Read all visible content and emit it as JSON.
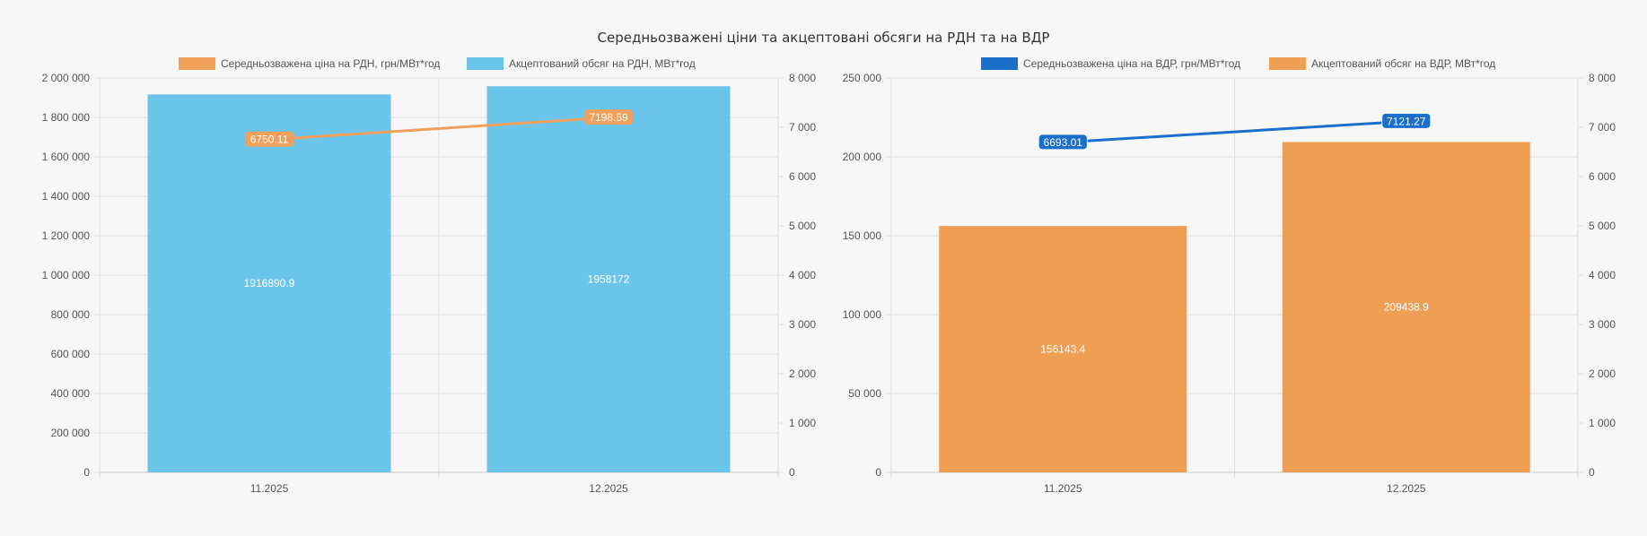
{
  "page": {
    "title": "Середньозважені ціни та акцептовані обсяги на РДН та на ВДР"
  },
  "colors": {
    "bar_rdn": "#6bc4ea",
    "line_rdn": "#f0a05a",
    "bar_vdr": "#ee9f53",
    "line_vdr": "#1a6fcb",
    "grid": "#dddddd",
    "axis_text": "#555555"
  },
  "chart_data": [
    {
      "type": "bar",
      "categories": [
        "11.2025",
        "12.2025"
      ],
      "series": [
        {
          "name": "Акцептований обсяг на РДН, МВт*год",
          "kind": "bar",
          "axis": "left",
          "values": [
            1916890.9,
            1958172
          ],
          "labels": [
            "1916890.9",
            "1958172"
          ]
        },
        {
          "name": "Середньозважена ціна на РДН, грн/МВт*год",
          "kind": "line",
          "axis": "right",
          "values": [
            6750.11,
            7198.59
          ],
          "labels": [
            "6750.11",
            "7198.59"
          ]
        }
      ],
      "legend_order": [
        1,
        0
      ],
      "y_left": {
        "min": 0,
        "max": 2000000,
        "ticks": [
          "0",
          "200 000",
          "400 000",
          "600 000",
          "800 000",
          "1 000 000",
          "1 200 000",
          "1 400 000",
          "1 600 000",
          "1 800 000",
          "2 000 000"
        ]
      },
      "y_right": {
        "min": 0,
        "max": 8000,
        "ticks": [
          "0",
          "1 000",
          "2 000",
          "3 000",
          "4 000",
          "5 000",
          "6 000",
          "7 000",
          "8 000"
        ]
      },
      "grid": true,
      "legend": "top"
    },
    {
      "type": "bar",
      "categories": [
        "11.2025",
        "12.2025"
      ],
      "series": [
        {
          "name": "Акцептований обсяг на ВДР, МВт*год",
          "kind": "bar",
          "axis": "left",
          "values": [
            156143.4,
            209438.9
          ],
          "labels": [
            "156143.4",
            "209438.9"
          ]
        },
        {
          "name": "Середньозважена ціна на ВДР, грн/МВт*год",
          "kind": "line",
          "axis": "right",
          "values": [
            6693.01,
            7121.27
          ],
          "labels": [
            "6693.01",
            "7121.27"
          ]
        }
      ],
      "legend_order": [
        1,
        0
      ],
      "y_left": {
        "min": 0,
        "max": 250000,
        "ticks": [
          "0",
          "50 000",
          "100 000",
          "150 000",
          "200 000",
          "250 000"
        ]
      },
      "y_right": {
        "min": 0,
        "max": 8000,
        "ticks": [
          "0",
          "1 000",
          "2 000",
          "3 000",
          "4 000",
          "5 000",
          "6 000",
          "7 000",
          "8 000"
        ]
      },
      "grid": true,
      "legend": "top"
    }
  ]
}
